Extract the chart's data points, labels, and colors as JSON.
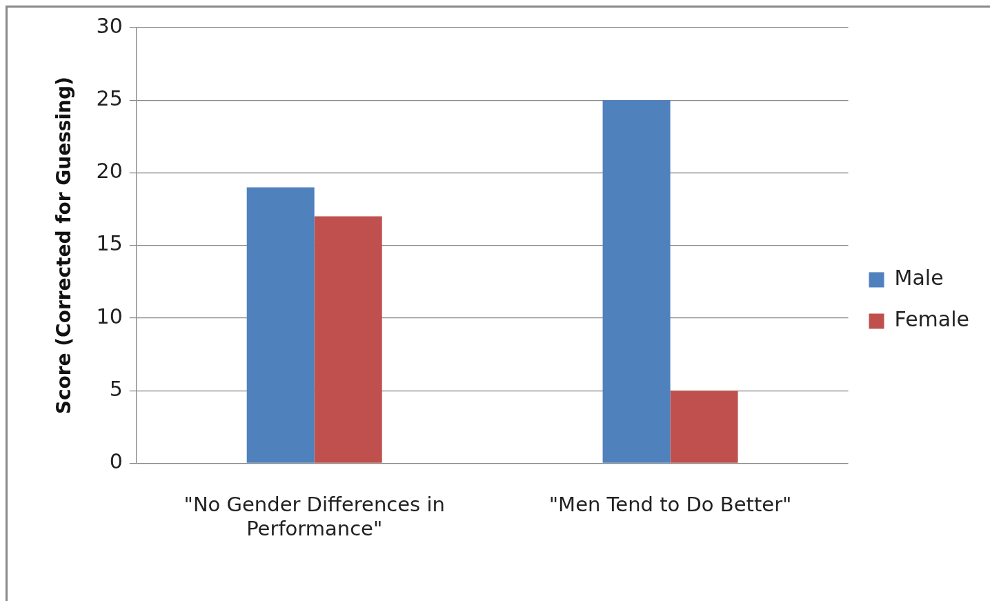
{
  "chart_data": {
    "type": "bar",
    "ylabel": "Score (Corrected for Guessing)",
    "categories": [
      "\"No Gender Differences in Performance\"",
      "\"Men Tend to Do Better\""
    ],
    "series": [
      {
        "name": "Male",
        "color": "#4f81bd",
        "values": [
          19,
          25
        ]
      },
      {
        "name": "Female",
        "color": "#c0504d",
        "values": [
          17,
          5
        ]
      }
    ],
    "ylim": [
      0,
      30
    ],
    "yticks": [
      0,
      5,
      10,
      15,
      20,
      25,
      30
    ],
    "grid": "y",
    "legend": "right"
  }
}
